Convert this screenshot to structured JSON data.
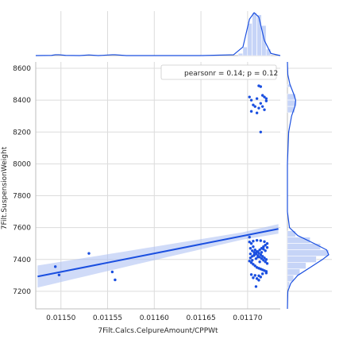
{
  "chart_data": {
    "type": "scatter",
    "xlabel": "7Filt.Calcs.CelpureAmount/CPPWt",
    "ylabel": "7Filt.SuspensionWeight",
    "xlim": [
      0.011473,
      0.011735
    ],
    "ylim": [
      7090,
      8640
    ],
    "x_ticks": [
      "0.01150",
      "0.01155",
      "0.01160",
      "0.01165",
      "0.01170"
    ],
    "y_ticks": [
      "7200",
      "7400",
      "7600",
      "7800",
      "8000",
      "8200",
      "8400",
      "8600"
    ],
    "grid": true,
    "legend": {
      "text": "pearsonr = 0.14; p = 0.12",
      "placement": "top-right"
    },
    "colors": {
      "points": "#1a4fe0",
      "line": "#1a4fe0",
      "band": "#a9bdf2",
      "hist": "#c6d4f7",
      "grid": "#dcdcdc",
      "spine": "#bdbdbd"
    },
    "regression": {
      "x": [
        0.011475,
        0.011733
      ],
      "y": [
        7293,
        7592
      ],
      "ci_width": [
        140,
        130
      ]
    },
    "points": [
      [
        0.011494,
        7355
      ],
      [
        0.011498,
        7303
      ],
      [
        0.01153,
        7438
      ],
      [
        0.011555,
        7322
      ],
      [
        0.011558,
        7272
      ],
      [
        0.011702,
        8420
      ],
      [
        0.011704,
        8400
      ],
      [
        0.011706,
        8370
      ],
      [
        0.011708,
        8360
      ],
      [
        0.01171,
        8410
      ],
      [
        0.011712,
        8350
      ],
      [
        0.011714,
        8380
      ],
      [
        0.011716,
        8360
      ],
      [
        0.011718,
        8340
      ],
      [
        0.01172,
        8395
      ],
      [
        0.011704,
        8330
      ],
      [
        0.01171,
        8320
      ],
      [
        0.011712,
        8490
      ],
      [
        0.011714,
        8485
      ],
      [
        0.011716,
        8430
      ],
      [
        0.011718,
        8420
      ],
      [
        0.01172,
        8410
      ],
      [
        0.011714,
        8200
      ],
      [
        0.011702,
        7540
      ],
      [
        0.011704,
        7500
      ],
      [
        0.011706,
        7480
      ],
      [
        0.011708,
        7460
      ],
      [
        0.01171,
        7450
      ],
      [
        0.011712,
        7440
      ],
      [
        0.011714,
        7430
      ],
      [
        0.011716,
        7420
      ],
      [
        0.011718,
        7410
      ],
      [
        0.01172,
        7400
      ],
      [
        0.011703,
        7470
      ],
      [
        0.011705,
        7455
      ],
      [
        0.011707,
        7445
      ],
      [
        0.011709,
        7435
      ],
      [
        0.011711,
        7425
      ],
      [
        0.011713,
        7415
      ],
      [
        0.011715,
        7405
      ],
      [
        0.011717,
        7395
      ],
      [
        0.011719,
        7385
      ],
      [
        0.011721,
        7375
      ],
      [
        0.011702,
        7390
      ],
      [
        0.011704,
        7380
      ],
      [
        0.011706,
        7370
      ],
      [
        0.011708,
        7360
      ],
      [
        0.01171,
        7350
      ],
      [
        0.011712,
        7345
      ],
      [
        0.011714,
        7340
      ],
      [
        0.011716,
        7335
      ],
      [
        0.011718,
        7330
      ],
      [
        0.01172,
        7325
      ],
      [
        0.011703,
        7410
      ],
      [
        0.011705,
        7420
      ],
      [
        0.011707,
        7430
      ],
      [
        0.011709,
        7440
      ],
      [
        0.011711,
        7450
      ],
      [
        0.011713,
        7460
      ],
      [
        0.011715,
        7470
      ],
      [
        0.011717,
        7480
      ],
      [
        0.011719,
        7490
      ],
      [
        0.011721,
        7500
      ],
      [
        0.011702,
        7510
      ],
      [
        0.011706,
        7515
      ],
      [
        0.01171,
        7520
      ],
      [
        0.011714,
        7518
      ],
      [
        0.011718,
        7512
      ],
      [
        0.011704,
        7305
      ],
      [
        0.011708,
        7300
      ],
      [
        0.011712,
        7298
      ],
      [
        0.011716,
        7310
      ],
      [
        0.01172,
        7315
      ],
      [
        0.011706,
        7285
      ],
      [
        0.01171,
        7280
      ],
      [
        0.011714,
        7290
      ],
      [
        0.011709,
        7230
      ],
      [
        0.011712,
        7270
      ],
      [
        0.011703,
        7435
      ],
      [
        0.011707,
        7425
      ],
      [
        0.011711,
        7415
      ],
      [
        0.011715,
        7445
      ],
      [
        0.011719,
        7455
      ],
      [
        0.011705,
        7395
      ],
      [
        0.011709,
        7405
      ],
      [
        0.011713,
        7385
      ],
      [
        0.011717,
        7465
      ],
      [
        0.011721,
        7475
      ]
    ],
    "marginal_x": {
      "hist_bins": [
        [
          0.01169,
          0.011695,
          0.05
        ],
        [
          0.011695,
          0.0117,
          0.2
        ],
        [
          0.0117,
          0.011705,
          0.75
        ],
        [
          0.011705,
          0.01171,
          1.0
        ],
        [
          0.01171,
          0.011715,
          0.95
        ],
        [
          0.011715,
          0.01172,
          0.7
        ],
        [
          0.01172,
          0.011725,
          0.15
        ]
      ],
      "kde_x": [
        0.011473,
        0.01149,
        0.011494,
        0.011498,
        0.011505,
        0.01152,
        0.01153,
        0.01154,
        0.011555,
        0.011558,
        0.01157,
        0.0116,
        0.01165,
        0.011685,
        0.011695,
        0.011702,
        0.011707,
        0.011712,
        0.011718,
        0.011725,
        0.011735
      ],
      "kde_y": [
        0.0,
        0.005,
        0.02,
        0.02,
        0.005,
        0.0,
        0.015,
        0.0,
        0.02,
        0.02,
        0.0,
        0.0,
        0.0,
        0.02,
        0.2,
        0.85,
        1.0,
        0.9,
        0.35,
        0.05,
        0.0
      ]
    },
    "marginal_y": {
      "hist_bins": [
        [
          7220,
          7260,
          0.05
        ],
        [
          7260,
          7300,
          0.15
        ],
        [
          7300,
          7340,
          0.3
        ],
        [
          7340,
          7380,
          0.45
        ],
        [
          7380,
          7420,
          0.7
        ],
        [
          7420,
          7460,
          1.0
        ],
        [
          7460,
          7500,
          0.8
        ],
        [
          7500,
          7540,
          0.55
        ],
        [
          7540,
          7580,
          0.2
        ],
        [
          8320,
          8360,
          0.18
        ],
        [
          8360,
          8400,
          0.22
        ],
        [
          8400,
          8440,
          0.2
        ],
        [
          8480,
          8500,
          0.08
        ]
      ],
      "kde_y": [
        7090,
        7200,
        7250,
        7300,
        7350,
        7400,
        7430,
        7460,
        7500,
        7550,
        7600,
        7700,
        8000,
        8200,
        8300,
        8360,
        8400,
        8440,
        8500,
        8560,
        8640
      ],
      "kde_x": [
        0.0,
        0.01,
        0.08,
        0.25,
        0.55,
        0.85,
        1.0,
        0.95,
        0.65,
        0.25,
        0.05,
        0.0,
        0.0,
        0.03,
        0.1,
        0.18,
        0.2,
        0.15,
        0.06,
        0.01,
        0.0
      ]
    }
  }
}
